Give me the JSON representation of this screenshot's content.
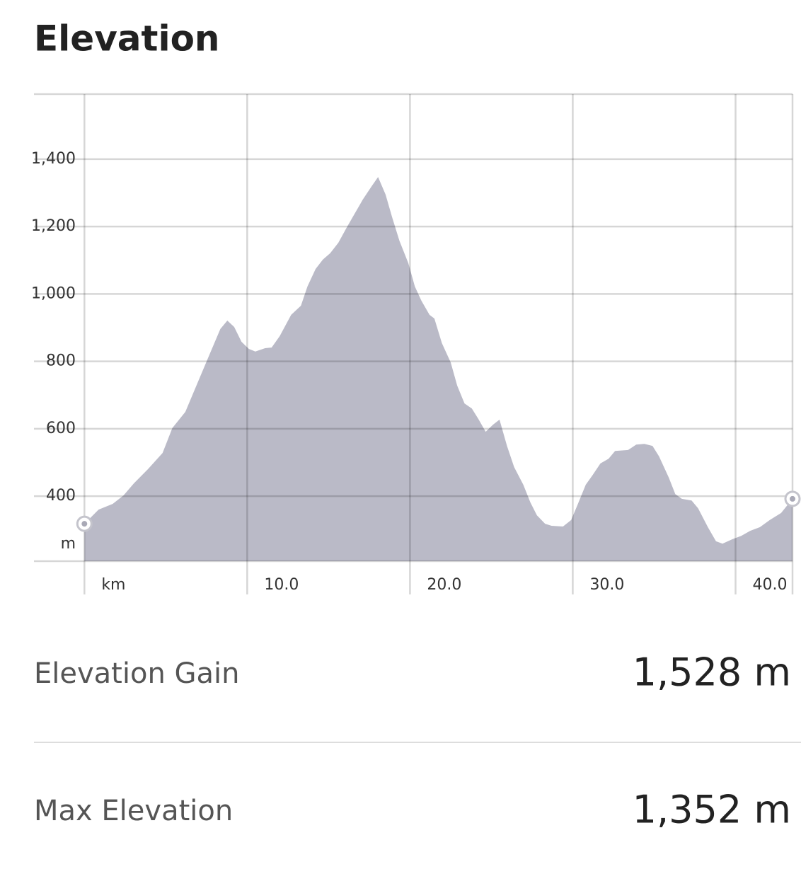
{
  "chart_data": {
    "type": "area",
    "title": "Elevation",
    "y_label": "m",
    "x": [
      0,
      0.87,
      1.74,
      2.4,
      3.04,
      3.9,
      4.8,
      5.4,
      6.2,
      7.0,
      7.7,
      8.35,
      8.78,
      9.2,
      9.65,
      10.1,
      10.5,
      11.1,
      11.5,
      12.0,
      12.7,
      13.3,
      13.7,
      14.2,
      14.65,
      15.1,
      15.6,
      16.1,
      16.6,
      17.1,
      17.65,
      18.04,
      18.5,
      18.9,
      19.35,
      19.9,
      20.3,
      20.7,
      21.2,
      21.5,
      21.96,
      22.5,
      22.9,
      23.35,
      23.8,
      24.2,
      24.65,
      25.1,
      25.5,
      25.96,
      26.4,
      26.96,
      27.4,
      27.8,
      28.3,
      28.7,
      29.4,
      29.9,
      30.3,
      30.8,
      31.2,
      31.7,
      32.2,
      32.6,
      33.4,
      33.9,
      34.4,
      34.9,
      35.3,
      35.9,
      36.3,
      36.7,
      37.3,
      37.7,
      38.3,
      38.8,
      39.2,
      39.8,
      40.35,
      40.9,
      41.5,
      42.1,
      42.8,
      43.5
    ],
    "series": [
      {
        "color": "#babac7",
        "values": [
          318,
          360,
          377,
          402,
          438,
          480,
          528,
          602,
          650,
          742,
          822,
          896,
          921,
          902,
          858,
          837,
          829,
          839,
          841,
          875,
          938,
          965,
          1022,
          1074,
          1102,
          1121,
          1152,
          1196,
          1238,
          1280,
          1320,
          1347,
          1295,
          1228,
          1158,
          1091,
          1022,
          980,
          938,
          927,
          854,
          797,
          728,
          675,
          660,
          629,
          591,
          612,
          627,
          549,
          486,
          434,
          381,
          343,
          318,
          312,
          310,
          329,
          375,
          434,
          461,
          497,
          511,
          534,
          537,
          553,
          555,
          549,
          518,
          455,
          406,
          392,
          387,
          364,
          308,
          266,
          259,
          272,
          282,
          297,
          308,
          329,
          350,
          392
        ]
      }
    ],
    "xlim": [
      -3.1,
      43.5
    ],
    "ylim": [
      207,
      1593
    ],
    "xticks": [
      {
        "value": 0,
        "label": "km"
      },
      {
        "value": 10,
        "label": "10.0"
      },
      {
        "value": 20,
        "label": "20.0"
      },
      {
        "value": 30,
        "label": "30.0"
      },
      {
        "value": 40,
        "label": "40.0"
      }
    ],
    "yticks": [
      {
        "value": 400,
        "label": "400"
      },
      {
        "value": 600,
        "label": "600"
      },
      {
        "value": 800,
        "label": "800"
      },
      {
        "value": 1000,
        "label": "1,000"
      },
      {
        "value": 1200,
        "label": "1,200"
      },
      {
        "value": 1400,
        "label": "1,400"
      }
    ],
    "grid": true
  },
  "stats": [
    {
      "label": "Elevation Gain",
      "value": "1,528 m"
    },
    {
      "label": "Max Elevation",
      "value": "1,352 m"
    }
  ]
}
